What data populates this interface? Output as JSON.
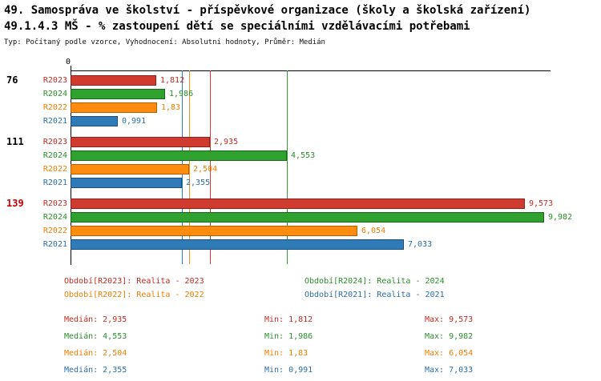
{
  "title": "49. Samospráva ve školství - příspěvkové organizace (školy a školská zařízení)",
  "subtitle": "49.1.4.3 MŠ - % zastoupení dětí se speciálními vzdělávacími potřebami",
  "meta": "Typ: Počítaný podle vzorce, Vyhodnocení: Absolutní hodnoty, Průměr: Medián",
  "colors": {
    "R2023": {
      "fill": "#cf3b2e",
      "border": "#8e1f1a",
      "text": "#c32b20"
    },
    "R2024": {
      "fill": "#2fa12f",
      "border": "#1c661c",
      "text": "#2a8f2a"
    },
    "R2022": {
      "fill": "#ff8c0f",
      "border": "#b05e00",
      "text": "#ef7d00"
    },
    "R2021": {
      "fill": "#2f7bb8",
      "border": "#1c4f7d",
      "text": "#2a6fa8"
    },
    "group_highlight": "#cc0000",
    "axis": "#000000"
  },
  "chart_data": {
    "type": "bar",
    "orientation": "horizontal",
    "xlim": [
      0,
      10.1
    ],
    "axis_zero_label": "0",
    "grid": "median-lines-only",
    "legend_position": "bottom",
    "series_order": [
      "R2023",
      "R2024",
      "R2022",
      "R2021"
    ],
    "groups": [
      {
        "label": "76",
        "label_color": "#000000",
        "bars": [
          {
            "series": "R2023",
            "value": 1.812,
            "value_label": "1,812"
          },
          {
            "series": "R2024",
            "value": 1.986,
            "value_label": "1,986"
          },
          {
            "series": "R2022",
            "value": 1.83,
            "value_label": "1,83"
          },
          {
            "series": "R2021",
            "value": 0.991,
            "value_label": "0,991"
          }
        ]
      },
      {
        "label": "111",
        "label_color": "#000000",
        "bars": [
          {
            "series": "R2023",
            "value": 2.935,
            "value_label": "2,935"
          },
          {
            "series": "R2024",
            "value": 4.553,
            "value_label": "4,553"
          },
          {
            "series": "R2022",
            "value": 2.504,
            "value_label": "2,504"
          },
          {
            "series": "R2021",
            "value": 2.355,
            "value_label": "2,355"
          }
        ]
      },
      {
        "label": "139",
        "label_color": "#cc0000",
        "bars": [
          {
            "series": "R2023",
            "value": 9.573,
            "value_label": "9,573"
          },
          {
            "series": "R2024",
            "value": 9.982,
            "value_label": "9,982"
          },
          {
            "series": "R2022",
            "value": 6.054,
            "value_label": "6,054"
          },
          {
            "series": "R2021",
            "value": 7.033,
            "value_label": "7,033"
          }
        ]
      }
    ],
    "median_lines": [
      {
        "series": "R2021",
        "value": 2.355
      },
      {
        "series": "R2022",
        "value": 2.504
      },
      {
        "series": "R2023",
        "value": 2.935
      },
      {
        "series": "R2024",
        "value": 4.553
      }
    ]
  },
  "legend": [
    {
      "series": "R2023",
      "label": "Období[R2023]: Realita - 2023"
    },
    {
      "series": "R2024",
      "label": "Období[R2024]: Realita - 2024"
    },
    {
      "series": "R2022",
      "label": "Období[R2022]: Realita - 2022"
    },
    {
      "series": "R2021",
      "label": "Období[R2021]: Realita - 2021"
    }
  ],
  "stats": [
    {
      "series": "R2023",
      "median": "Medián: 2,935",
      "min": "Min: 1,812",
      "max": "Max: 9,573"
    },
    {
      "series": "R2024",
      "median": "Medián: 4,553",
      "min": "Min: 1,986",
      "max": "Max: 9,982"
    },
    {
      "series": "R2022",
      "median": "Medián: 2,504",
      "min": "Min: 1,83",
      "max": "Max: 6,054"
    },
    {
      "series": "R2021",
      "median": "Medián: 2,355",
      "min": "Min: 0,991",
      "max": "Max: 7,033"
    }
  ]
}
